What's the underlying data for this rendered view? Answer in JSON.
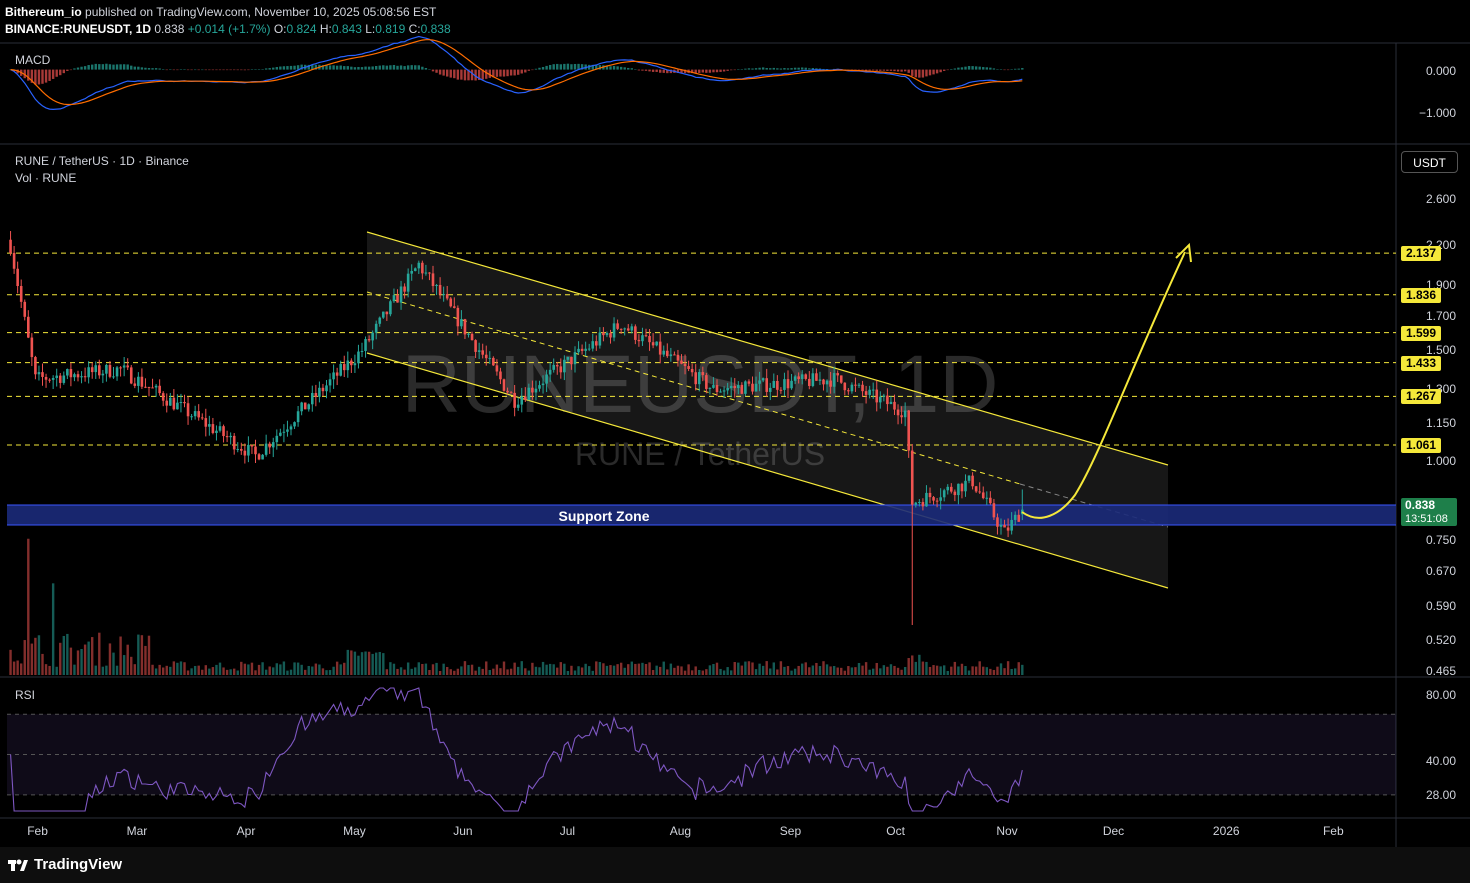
{
  "header": {
    "publisher": "Bithereum_io",
    "published_text": "published on TradingView.com, November 10, 2025 05:08:56 EST",
    "symbol": "BINANCE:RUNEUSDT, 1D",
    "last": "0.838",
    "change": "+0.014 (+1.7%)",
    "o_label": "O:",
    "o": "0.824",
    "h_label": "H:",
    "h": "0.843",
    "l_label": "L:",
    "l": "0.819",
    "c_label": "C:",
    "c": "0.838"
  },
  "macd": {
    "label": "MACD",
    "ticks": [
      "0.000",
      "−1.000"
    ]
  },
  "main": {
    "title": "RUNE / TetherUS · 1D · Binance",
    "vol_label": "Vol · RUNE",
    "watermark": "RUNEUSDT, 1D",
    "watermark_sub": "RUNE / TetherUS",
    "currency_button": "USDT",
    "support_label": "Support Zone",
    "price_ticks": [
      "2.600",
      "2.200",
      "1.900",
      "1.700",
      "1.500",
      "1.300",
      "1.150",
      "1.000",
      "0.750",
      "0.670",
      "0.590",
      "0.520",
      "0.465"
    ],
    "levels": [
      "2.137",
      "1.836",
      "1.599",
      "1.433",
      "1.267",
      "1.061"
    ],
    "current_price": "0.838",
    "countdown": "13:51:08"
  },
  "rsi": {
    "label": "RSI",
    "ticks": [
      "80.00",
      "40.00",
      "28.00"
    ]
  },
  "x_axis": {
    "months": [
      "Feb",
      "Mar",
      "Apr",
      "May",
      "Jun",
      "Jul",
      "Aug",
      "Sep",
      "Oct",
      "Nov",
      "Dec",
      "2026",
      "Feb"
    ]
  },
  "footer": {
    "brand": "TradingView"
  },
  "colors": {
    "up": "#26a69a",
    "down": "#ef5350",
    "level": "#f5e83a",
    "support": "#1b2a7a",
    "macd": "#2962ff",
    "signal": "#ff6d00",
    "rsi": "#7e57c2"
  },
  "chart_data": {
    "type": "candlestick",
    "title": "RUNE / TetherUS · 1D · Binance",
    "price_scale": "log",
    "ylim": [
      0.46,
      2.75
    ],
    "x": [
      "2025-01-28",
      "2025-11-10"
    ],
    "key_points": [
      {
        "date": "2025-01-29",
        "close": 2.2
      },
      {
        "date": "2025-02-05",
        "close": 1.35
      },
      {
        "date": "2025-03-01",
        "close": 1.4
      },
      {
        "date": "2025-04-08",
        "close": 1.02
      },
      {
        "date": "2025-05-08",
        "close": 1.5
      },
      {
        "date": "2025-05-24",
        "close": 2.05
      },
      {
        "date": "2025-06-20",
        "close": 1.25
      },
      {
        "date": "2025-07-20",
        "close": 1.65
      },
      {
        "date": "2025-08-15",
        "close": 1.3
      },
      {
        "date": "2025-09-18",
        "close": 1.35
      },
      {
        "date": "2025-10-08",
        "close": 1.2
      },
      {
        "date": "2025-10-10",
        "close": 0.86,
        "low": 0.55
      },
      {
        "date": "2025-10-27",
        "close": 0.93
      },
      {
        "date": "2025-11-05",
        "close": 0.77
      },
      {
        "date": "2025-11-10",
        "open": 0.824,
        "high": 0.843,
        "low": 0.819,
        "close": 0.838
      }
    ],
    "horizontal_levels": [
      2.137,
      1.836,
      1.599,
      1.433,
      1.267,
      1.061
    ],
    "support_zone": [
      0.82,
      0.85
    ],
    "channel": {
      "upper": [
        [
          "2025-05-07",
          2.3
        ],
        [
          "2025-11-28",
          1.0
        ]
      ],
      "lower": [
        [
          "2025-05-07",
          1.45
        ],
        [
          "2025-11-28",
          0.63
        ]
      ]
    },
    "projection": "curved arrow from 0.84 up to 2.137",
    "macd_range": [
      -1.2,
      0.3
    ],
    "rsi_range": [
      20,
      85
    ],
    "rsi_bands": [
      70,
      50,
      30
    ]
  }
}
